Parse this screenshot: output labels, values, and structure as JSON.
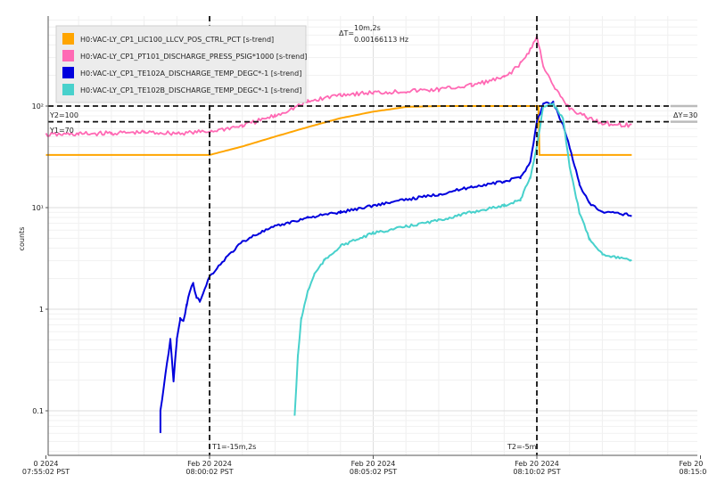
{
  "chart_data": {
    "type": "line",
    "ylabel": "counts",
    "yscale": "log",
    "ylim": [
      0.04,
      1000
    ],
    "grid": true,
    "legend_position": "top-left",
    "y_ticks": [
      {
        "value": 0.1,
        "label": "0.1"
      },
      {
        "value": 1,
        "label": "1"
      },
      {
        "value": 10,
        "label": "10¹"
      },
      {
        "value": 100,
        "label": "10²"
      }
    ],
    "x_ticks": [
      {
        "minute": -5,
        "line1": "0 2024",
        "line2": "07:55:02 PST"
      },
      {
        "minute": 0,
        "line1": "Feb 20 2024",
        "line2": "08:00:02 PST"
      },
      {
        "minute": 5,
        "line1": "Feb 20 2024",
        "line2": "08:05:02 PST"
      },
      {
        "minute": 10,
        "line1": "Feb 20 2024",
        "line2": "08:10:02 PST"
      },
      {
        "minute": 15,
        "line1": "Feb 20",
        "line2": "08:15:0"
      }
    ],
    "series": [
      {
        "name": "H0:VAC-LY_CP1_LIC100_LLCV_POS_CTRL_PCT [s-trend]",
        "color": "#ffa500",
        "points": [
          [
            -5,
            33
          ],
          [
            -0.05,
            33
          ],
          [
            0,
            33
          ],
          [
            1,
            40
          ],
          [
            2,
            50
          ],
          [
            3,
            62
          ],
          [
            4,
            76
          ],
          [
            5,
            88
          ],
          [
            6,
            98
          ],
          [
            7,
            100
          ],
          [
            8,
            100
          ],
          [
            9,
            100
          ],
          [
            10,
            100
          ],
          [
            10.05,
            100
          ],
          [
            10.08,
            33
          ],
          [
            11,
            33
          ],
          [
            12,
            33
          ],
          [
            12.9,
            33
          ]
        ]
      },
      {
        "name": "H0:VAC-LY_CP1_PT101_DISCHARGE_PRESS_PSIG*1000 [s-trend]",
        "color": "#ff69b4",
        "points": [
          [
            -5,
            52
          ],
          [
            -4,
            53
          ],
          [
            -3,
            54
          ],
          [
            -2,
            55
          ],
          [
            -1,
            54
          ],
          [
            0,
            56
          ],
          [
            1,
            64
          ],
          [
            2,
            80
          ],
          [
            3,
            110
          ],
          [
            4,
            130
          ],
          [
            5,
            135
          ],
          [
            6,
            140
          ],
          [
            7,
            145
          ],
          [
            8,
            160
          ],
          [
            9,
            190
          ],
          [
            9.5,
            260
          ],
          [
            9.8,
            360
          ],
          [
            10,
            480
          ],
          [
            10.2,
            250
          ],
          [
            10.5,
            155
          ],
          [
            11,
            95
          ],
          [
            11.5,
            78
          ],
          [
            12,
            68
          ],
          [
            12.9,
            64
          ]
        ]
      },
      {
        "name": "H0:VAC-LY_CP1_TE102A_DISCHARGE_TEMP_DEGC*-1 [s-trend]",
        "color": "#0000dd",
        "points": [
          [
            -1.5,
            0.06
          ],
          [
            -1.5,
            0.1
          ],
          [
            -1.2,
            0.5
          ],
          [
            -1.1,
            0.2
          ],
          [
            -1,
            0.5
          ],
          [
            -0.9,
            0.8
          ],
          [
            -0.8,
            0.75
          ],
          [
            -0.7,
            1.1
          ],
          [
            -0.6,
            1.5
          ],
          [
            -0.5,
            1.8
          ],
          [
            -0.4,
            1.3
          ],
          [
            -0.3,
            1.2
          ],
          [
            0,
            2.1
          ],
          [
            0.5,
            3.2
          ],
          [
            1,
            4.6
          ],
          [
            1.5,
            5.6
          ],
          [
            2,
            6.5
          ],
          [
            3,
            8
          ],
          [
            4,
            9
          ],
          [
            5,
            10.5
          ],
          [
            6,
            12
          ],
          [
            7,
            13.5
          ],
          [
            8,
            16
          ],
          [
            9,
            18
          ],
          [
            9.5,
            20
          ],
          [
            9.8,
            28
          ],
          [
            10,
            70
          ],
          [
            10.2,
            105
          ],
          [
            10.5,
            108
          ],
          [
            10.8,
            65
          ],
          [
            11,
            40
          ],
          [
            11.3,
            17
          ],
          [
            11.6,
            11
          ],
          [
            12,
            9
          ],
          [
            12.9,
            8.5
          ]
        ]
      },
      {
        "name": "H0:VAC-LY_CP1_TE102B_DISCHARGE_TEMP_DEGC*-1 [s-trend]",
        "color": "#48d1cc",
        "points": [
          [
            2.6,
            0.09
          ],
          [
            2.7,
            0.35
          ],
          [
            2.8,
            0.8
          ],
          [
            3,
            1.5
          ],
          [
            3.2,
            2.2
          ],
          [
            3.5,
            3
          ],
          [
            4,
            4.2
          ],
          [
            5,
            5.6
          ],
          [
            6,
            6.5
          ],
          [
            7,
            7.5
          ],
          [
            8,
            9
          ],
          [
            9,
            10.5
          ],
          [
            9.5,
            12
          ],
          [
            9.8,
            20
          ],
          [
            10,
            40
          ],
          [
            10.2,
            100
          ],
          [
            10.5,
            105
          ],
          [
            10.8,
            75
          ],
          [
            11,
            25
          ],
          [
            11.3,
            9
          ],
          [
            11.6,
            5
          ],
          [
            12,
            3.5
          ],
          [
            12.9,
            3
          ]
        ]
      }
    ],
    "cursors": {
      "t1_label": "T1=-15m,2s",
      "t2_label": "T2=-5m",
      "delta_t_symbol": "ΔT=",
      "delta_t_value": "10m,2s",
      "delta_t_freq": "0.00166113 Hz",
      "y1_label": "Y1=70",
      "y2_label": "Y2=100",
      "delta_y_label": "ΔY=30",
      "t1_minute": 0,
      "t2_minute": 10,
      "y1_value": 70,
      "y2_value": 100
    }
  }
}
